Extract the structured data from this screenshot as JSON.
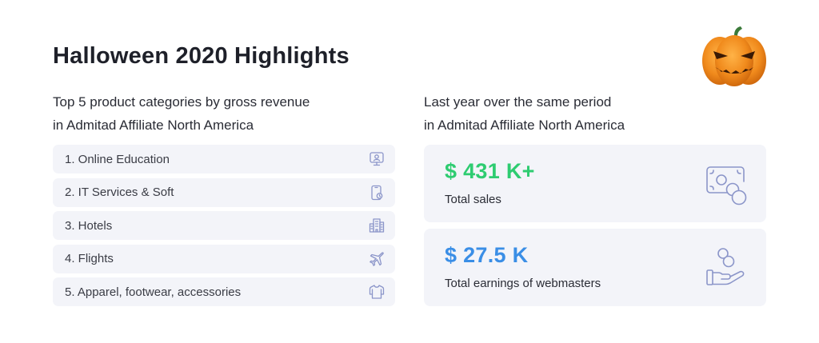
{
  "title": "Halloween 2020 Highlights",
  "left": {
    "subtitle_line1": "Top 5 product categories by gross revenue",
    "subtitle_line2": "in Admitad Affiliate North America",
    "categories": [
      {
        "label": "1. Online Education",
        "icon": "monitor-icon"
      },
      {
        "label": "2. IT Services & Soft",
        "icon": "smartphone-icon"
      },
      {
        "label": "3. Hotels",
        "icon": "building-icon"
      },
      {
        "label": "4. Flights",
        "icon": "airplane-icon"
      },
      {
        "label": "5. Apparel, footwear, accessories",
        "icon": "shirt-icon"
      }
    ]
  },
  "right": {
    "subtitle_line1": "Last year over the same period",
    "subtitle_line2": "in Admitad Affiliate North America",
    "stats": [
      {
        "value": "$ 431 K+",
        "label": "Total sales",
        "color": "#2ecc71",
        "icon": "cash-coins-icon"
      },
      {
        "value": "$ 27.5 K",
        "label": "Total earnings of webmasters",
        "color": "#3a8ee6",
        "icon": "hand-coins-icon"
      }
    ]
  },
  "colors": {
    "card_bg": "#f3f4f9",
    "icon_stroke": "#8b95c9",
    "sales_green": "#2ecc71",
    "earnings_blue": "#3a8ee6",
    "pumpkin_orange": "#f08a1c"
  },
  "decoration": {
    "icon": "jack-o-lantern-icon"
  }
}
